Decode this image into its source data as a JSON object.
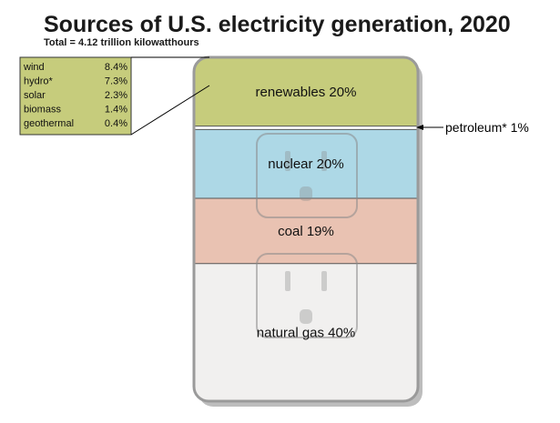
{
  "chart_data": {
    "type": "stacked-bar",
    "title": "Sources of U.S. electricity generation, 2020",
    "subtitle": "Total = 4.12 trillion kilowatthours",
    "segments": [
      {
        "label": "renewables 20%",
        "value": 20,
        "color": "#c6cc7c"
      },
      {
        "label": "petroleum* 1%",
        "value": 1,
        "color": "#ffffff"
      },
      {
        "label": "nuclear 20%",
        "value": 20,
        "color": "#add8e6"
      },
      {
        "label": "coal 19%",
        "value": 19,
        "color": "#e9c2b2"
      },
      {
        "label": "natural gas 40%",
        "value": 40,
        "color": "#f1f0ef"
      }
    ],
    "renewables_breakdown": [
      {
        "name": "wind",
        "value": "8.4%"
      },
      {
        "name": "hydro*",
        "value": "7.3%"
      },
      {
        "name": "solar",
        "value": "2.3%"
      },
      {
        "name": "biomass",
        "value": "1.4%"
      },
      {
        "name": "geothermal",
        "value": "0.4%"
      }
    ],
    "colors": {
      "breakdown_box": "#c6cc7c",
      "frame": "#9a9a9a",
      "outlet": "#8a8a8a"
    }
  }
}
